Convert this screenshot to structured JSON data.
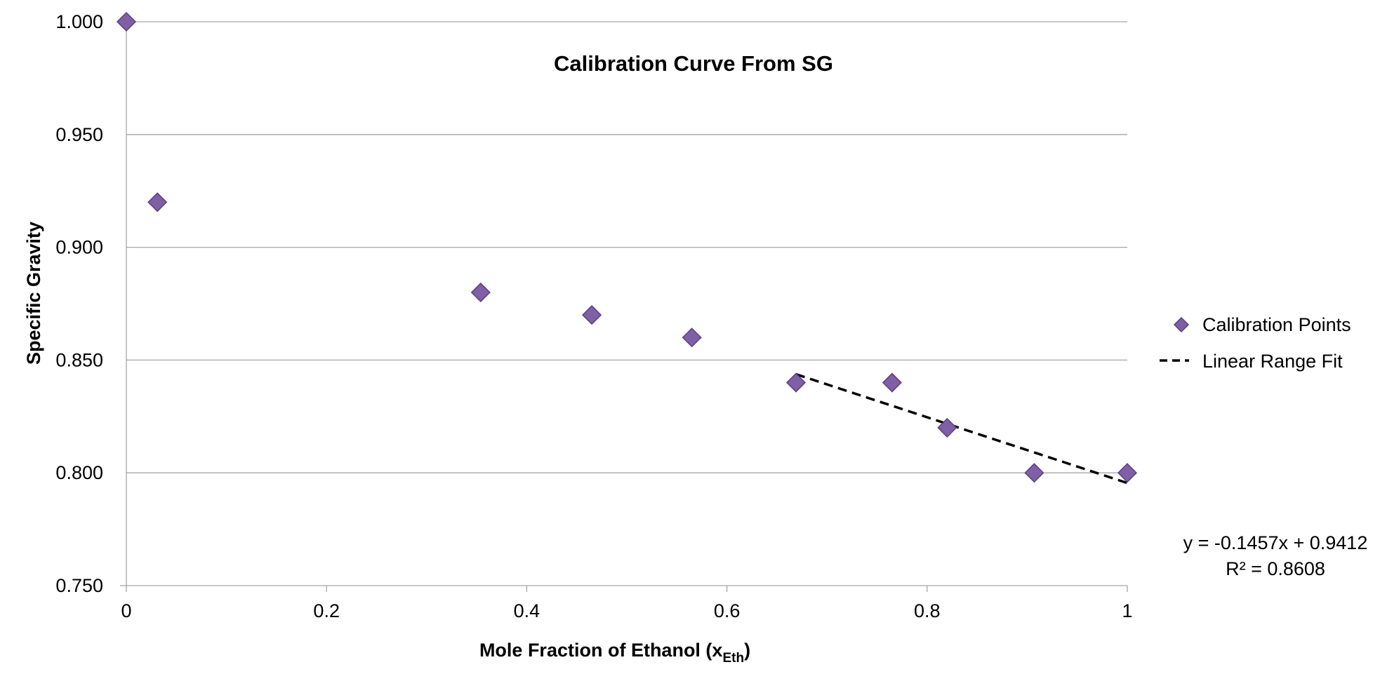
{
  "chart_data": {
    "type": "scatter",
    "title": "Calibration Curve From SG",
    "xlabel": "Mole Fraction of Ethanol (x",
    "xlabel_subscript": "Eth",
    "xlabel_suffix": ")",
    "ylabel": "Specific Gravity",
    "xlim": [
      0,
      1
    ],
    "ylim": [
      0.75,
      1.0
    ],
    "x_ticks": [
      0,
      0.2,
      0.4,
      0.6,
      0.8,
      1
    ],
    "x_tick_labels": [
      "0",
      "0.2",
      "0.4",
      "0.6",
      "0.8",
      "1"
    ],
    "y_ticks": [
      0.75,
      0.8,
      0.85,
      0.9,
      0.95,
      1.0
    ],
    "y_tick_labels": [
      "0.750",
      "0.800",
      "0.850",
      "0.900",
      "0.950",
      "1.000"
    ],
    "grid": "horizontal",
    "legend_position": "right",
    "series": [
      {
        "name": "Calibration Points",
        "marker": "diamond",
        "color": "#7f5fa6",
        "x": [
          0,
          0.031,
          0.354,
          0.465,
          0.565,
          0.669,
          0.765,
          0.82,
          0.907,
          1.0
        ],
        "y": [
          1.0,
          0.92,
          0.88,
          0.87,
          0.86,
          0.84,
          0.84,
          0.82,
          0.8,
          0.8
        ]
      },
      {
        "name": "Linear Range Fit",
        "style": "dashed",
        "color": "#000000",
        "slope": -0.1457,
        "intercept": 0.9412,
        "x_range": [
          0.669,
          1.0
        ]
      }
    ],
    "annotations": {
      "equation": "y = -0.1457x + 0.9412",
      "r_squared": "R² = 0.8608"
    }
  }
}
